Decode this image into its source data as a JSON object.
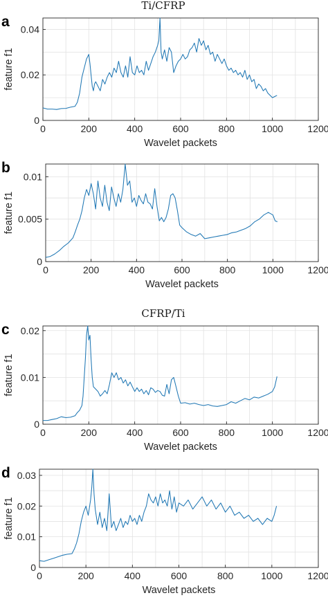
{
  "colors": {
    "series": "#1f77b4",
    "grid": "#e2e2e2",
    "axis": "#262626"
  },
  "chart_data": [
    {
      "type": "line",
      "panel_label": "a",
      "title": "Ti/CFRP",
      "xlabel": "Wavelet packets",
      "ylabel": "feature f1",
      "xlim": [
        0,
        1200
      ],
      "ylim": [
        0,
        0.045
      ],
      "xticks": [
        0,
        200,
        400,
        600,
        800,
        1000,
        1200
      ],
      "xtick_labels": [
        "0",
        "200",
        "400",
        "600",
        "800",
        "1000",
        "1200"
      ],
      "yticks": [
        0,
        0.02,
        0.04
      ],
      "ytick_labels": [
        "0",
        "0.02",
        "0.04"
      ],
      "grid": true,
      "series": [
        {
          "x": [
            0,
            20,
            40,
            60,
            80,
            100,
            120,
            140,
            150,
            160,
            170,
            180,
            190,
            195,
            200,
            205,
            210,
            215,
            220,
            225,
            230,
            240,
            250,
            260,
            270,
            280,
            290,
            300,
            310,
            320,
            330,
            340,
            350,
            360,
            370,
            380,
            390,
            400,
            410,
            420,
            430,
            440,
            450,
            460,
            470,
            480,
            490,
            500,
            505,
            510,
            515,
            520,
            530,
            540,
            550,
            560,
            570,
            580,
            590,
            600,
            610,
            620,
            630,
            640,
            650,
            660,
            670,
            680,
            690,
            700,
            710,
            720,
            730,
            740,
            750,
            760,
            770,
            780,
            790,
            800,
            810,
            820,
            830,
            840,
            850,
            860,
            870,
            880,
            890,
            900,
            910,
            920,
            930,
            940,
            950,
            960,
            970,
            980,
            990,
            1000,
            1010,
            1020
          ],
          "y": [
            0.0055,
            0.005,
            0.005,
            0.0048,
            0.0052,
            0.0053,
            0.0058,
            0.0062,
            0.008,
            0.012,
            0.019,
            0.023,
            0.027,
            0.028,
            0.029,
            0.025,
            0.02,
            0.015,
            0.013,
            0.016,
            0.017,
            0.015,
            0.013,
            0.018,
            0.016,
            0.019,
            0.021,
            0.019,
            0.023,
            0.021,
            0.026,
            0.021,
            0.019,
            0.024,
            0.019,
            0.028,
            0.021,
            0.02,
            0.024,
            0.021,
            0.022,
            0.02,
            0.026,
            0.022,
            0.025,
            0.028,
            0.03,
            0.033,
            0.035,
            0.045,
            0.03,
            0.027,
            0.031,
            0.026,
            0.032,
            0.03,
            0.021,
            0.024,
            0.026,
            0.027,
            0.029,
            0.027,
            0.028,
            0.031,
            0.032,
            0.034,
            0.03,
            0.036,
            0.033,
            0.035,
            0.031,
            0.033,
            0.029,
            0.03,
            0.026,
            0.029,
            0.027,
            0.025,
            0.027,
            0.024,
            0.022,
            0.023,
            0.021,
            0.022,
            0.02,
            0.021,
            0.019,
            0.022,
            0.018,
            0.02,
            0.017,
            0.018,
            0.014,
            0.016,
            0.015,
            0.013,
            0.014,
            0.012,
            0.011,
            0.01,
            0.0105,
            0.011
          ]
        }
      ]
    },
    {
      "type": "line",
      "panel_label": "b",
      "title": "",
      "xlabel": "Wavelet packets",
      "ylabel": "feature f1",
      "xlim": [
        0,
        1200
      ],
      "ylim": [
        0,
        0.0115
      ],
      "xticks": [
        0,
        200,
        400,
        600,
        800,
        1000,
        1200
      ],
      "xtick_labels": [
        "0",
        "200",
        "400",
        "600",
        "800",
        "1000",
        "1200"
      ],
      "yticks": [
        0,
        0.005,
        0.01
      ],
      "ytick_labels": [
        "0",
        "0.005",
        "0.01"
      ],
      "grid": true,
      "series": [
        {
          "x": [
            0,
            20,
            40,
            60,
            80,
            100,
            120,
            130,
            140,
            150,
            160,
            170,
            180,
            190,
            200,
            210,
            220,
            230,
            240,
            250,
            260,
            270,
            280,
            290,
            300,
            310,
            320,
            330,
            340,
            350,
            360,
            370,
            380,
            390,
            400,
            410,
            420,
            430,
            440,
            450,
            460,
            470,
            480,
            490,
            500,
            510,
            520,
            530,
            540,
            550,
            560,
            570,
            580,
            590,
            600,
            620,
            640,
            660,
            680,
            700,
            720,
            740,
            760,
            780,
            800,
            820,
            840,
            860,
            880,
            900,
            920,
            940,
            960,
            980,
            1000,
            1010,
            1020
          ],
          "y": [
            0.0005,
            0.0006,
            0.0009,
            0.0013,
            0.0018,
            0.0022,
            0.0028,
            0.0035,
            0.0043,
            0.005,
            0.006,
            0.0075,
            0.0085,
            0.0078,
            0.0092,
            0.008,
            0.0062,
            0.0095,
            0.0075,
            0.0065,
            0.009,
            0.007,
            0.006,
            0.0088,
            0.0075,
            0.0065,
            0.008,
            0.007,
            0.0085,
            0.0115,
            0.009,
            0.0095,
            0.007,
            0.0075,
            0.0065,
            0.0078,
            0.0072,
            0.0068,
            0.008,
            0.007,
            0.0068,
            0.0062,
            0.0086,
            0.0065,
            0.0048,
            0.0052,
            0.0047,
            0.0052,
            0.0062,
            0.0078,
            0.008,
            0.0075,
            0.006,
            0.0043,
            0.004,
            0.0035,
            0.0032,
            0.003,
            0.0033,
            0.0027,
            0.0028,
            0.0029,
            0.003,
            0.0031,
            0.0032,
            0.0034,
            0.0035,
            0.0037,
            0.0039,
            0.0042,
            0.0047,
            0.005,
            0.0055,
            0.0058,
            0.0055,
            0.0048,
            0.0047
          ]
        }
      ]
    },
    {
      "type": "line",
      "panel_label": "c",
      "title": "CFRP/Ti",
      "xlabel": "Wavelet packets",
      "ylabel": "feature f1",
      "xlim": [
        0,
        1200
      ],
      "ylim": [
        0,
        0.021
      ],
      "xticks": [
        0,
        200,
        400,
        600,
        800,
        1000,
        1200
      ],
      "xtick_labels": [
        "0",
        "200",
        "400",
        "600",
        "800",
        "1000",
        "1200"
      ],
      "yticks": [
        0,
        0.01,
        0.02
      ],
      "ytick_labels": [
        "0",
        "0.01",
        "0.02"
      ],
      "grid": true,
      "series": [
        {
          "x": [
            0,
            20,
            40,
            60,
            80,
            100,
            120,
            140,
            150,
            160,
            170,
            175,
            180,
            185,
            190,
            195,
            200,
            205,
            210,
            215,
            220,
            230,
            240,
            250,
            260,
            270,
            280,
            290,
            300,
            310,
            320,
            330,
            340,
            350,
            360,
            370,
            380,
            390,
            400,
            410,
            420,
            430,
            440,
            450,
            460,
            470,
            480,
            490,
            500,
            510,
            520,
            530,
            540,
            550,
            560,
            570,
            580,
            590,
            600,
            620,
            640,
            660,
            680,
            700,
            720,
            740,
            760,
            780,
            800,
            820,
            840,
            860,
            880,
            900,
            920,
            940,
            960,
            980,
            1000,
            1010,
            1020
          ],
          "y": [
            0.0008,
            0.0008,
            0.001,
            0.0012,
            0.0016,
            0.0014,
            0.0015,
            0.0018,
            0.0025,
            0.003,
            0.004,
            0.006,
            0.01,
            0.014,
            0.019,
            0.021,
            0.018,
            0.019,
            0.014,
            0.01,
            0.008,
            0.0075,
            0.007,
            0.006,
            0.0065,
            0.0072,
            0.0065,
            0.0085,
            0.011,
            0.01,
            0.011,
            0.0095,
            0.01,
            0.0088,
            0.0095,
            0.0082,
            0.009,
            0.008,
            0.007,
            0.0078,
            0.007,
            0.0075,
            0.0065,
            0.0072,
            0.0063,
            0.0078,
            0.0075,
            0.0068,
            0.0072,
            0.007,
            0.0062,
            0.006,
            0.0085,
            0.0065,
            0.0095,
            0.01,
            0.008,
            0.006,
            0.0045,
            0.0046,
            0.0043,
            0.0045,
            0.0042,
            0.004,
            0.0042,
            0.0039,
            0.0038,
            0.004,
            0.0042,
            0.0048,
            0.0045,
            0.005,
            0.0055,
            0.0052,
            0.0058,
            0.0056,
            0.006,
            0.0064,
            0.007,
            0.008,
            0.0102
          ]
        }
      ]
    },
    {
      "type": "line",
      "panel_label": "d",
      "title": "",
      "xlabel": "Wavelet packets",
      "ylabel": "feature f1",
      "xlim": [
        0,
        1200
      ],
      "ylim": [
        0,
        0.032
      ],
      "xticks": [
        0,
        200,
        400,
        600,
        800,
        1000,
        1200
      ],
      "xtick_labels": [
        "0",
        "200",
        "400",
        "600",
        "800",
        "1000",
        "1200"
      ],
      "yticks": [
        0,
        0.01,
        0.02,
        0.03
      ],
      "ytick_labels": [
        "0",
        "0.01",
        "0.02",
        "0.03"
      ],
      "grid": true,
      "series": [
        {
          "x": [
            0,
            20,
            40,
            60,
            80,
            100,
            120,
            140,
            150,
            160,
            170,
            180,
            190,
            200,
            210,
            220,
            225,
            230,
            235,
            240,
            250,
            260,
            270,
            280,
            290,
            300,
            310,
            320,
            330,
            340,
            350,
            360,
            370,
            380,
            390,
            400,
            410,
            420,
            430,
            440,
            450,
            460,
            470,
            480,
            490,
            500,
            510,
            520,
            530,
            540,
            550,
            560,
            570,
            580,
            590,
            600,
            620,
            640,
            660,
            680,
            700,
            720,
            740,
            760,
            780,
            800,
            820,
            840,
            860,
            880,
            900,
            920,
            940,
            960,
            980,
            1000,
            1010,
            1020
          ],
          "y": [
            0.0022,
            0.002,
            0.0025,
            0.003,
            0.0035,
            0.004,
            0.0043,
            0.0045,
            0.006,
            0.008,
            0.011,
            0.015,
            0.018,
            0.02,
            0.017,
            0.022,
            0.026,
            0.032,
            0.024,
            0.019,
            0.014,
            0.018,
            0.013,
            0.016,
            0.012,
            0.024,
            0.013,
            0.015,
            0.012,
            0.014,
            0.016,
            0.013,
            0.015,
            0.014,
            0.017,
            0.015,
            0.016,
            0.014,
            0.017,
            0.015,
            0.018,
            0.02,
            0.024,
            0.022,
            0.021,
            0.023,
            0.02,
            0.024,
            0.021,
            0.022,
            0.02,
            0.025,
            0.019,
            0.023,
            0.018,
            0.021,
            0.02,
            0.022,
            0.019,
            0.021,
            0.023,
            0.02,
            0.022,
            0.019,
            0.021,
            0.018,
            0.02,
            0.017,
            0.018,
            0.016,
            0.017,
            0.015,
            0.016,
            0.014,
            0.016,
            0.015,
            0.017,
            0.02
          ]
        }
      ]
    }
  ]
}
